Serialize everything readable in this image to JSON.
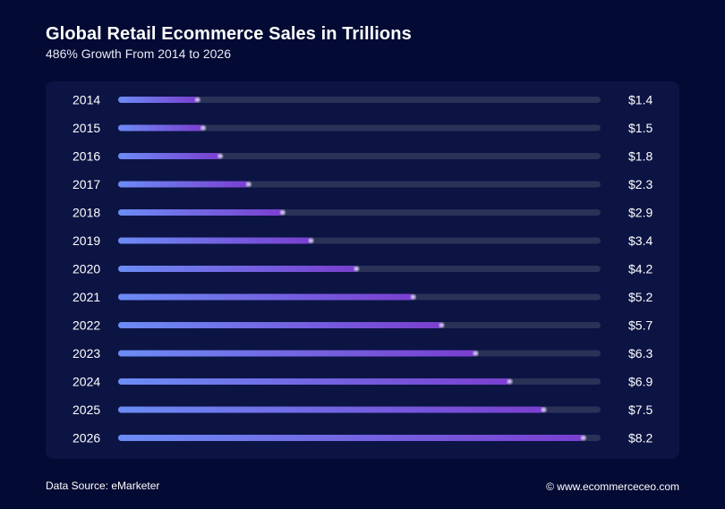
{
  "header": {
    "title": "Global Retail Ecommerce Sales in Trillions",
    "subtitle": "486% Growth From 2014 to 2026"
  },
  "footer": {
    "source": "Data Source: eMarketer",
    "credit": "© www.ecommerceceo.com"
  },
  "colors": {
    "background": "#030a33",
    "panel": "#0c1444",
    "track": "#2a3258",
    "bar_start": "#6c8cf5",
    "bar_end": "#7a3fd0",
    "marker": "#c9b8f5"
  },
  "chart_data": {
    "type": "bar",
    "orientation": "horizontal",
    "categories": [
      "2014",
      "2015",
      "2016",
      "2017",
      "2018",
      "2019",
      "2020",
      "2021",
      "2022",
      "2023",
      "2024",
      "2025",
      "2026"
    ],
    "values": [
      1.4,
      1.5,
      1.8,
      2.3,
      2.9,
      3.4,
      4.2,
      5.2,
      5.7,
      6.3,
      6.9,
      7.5,
      8.2
    ],
    "value_labels": [
      "$1.4",
      "$1.5",
      "$1.8",
      "$2.3",
      "$2.9",
      "$3.4",
      "$4.2",
      "$5.2",
      "$5.7",
      "$6.3",
      "$6.9",
      "$7.5",
      "$8.2"
    ],
    "xlim": [
      0,
      8.5
    ],
    "grid": false,
    "legend": "none"
  }
}
